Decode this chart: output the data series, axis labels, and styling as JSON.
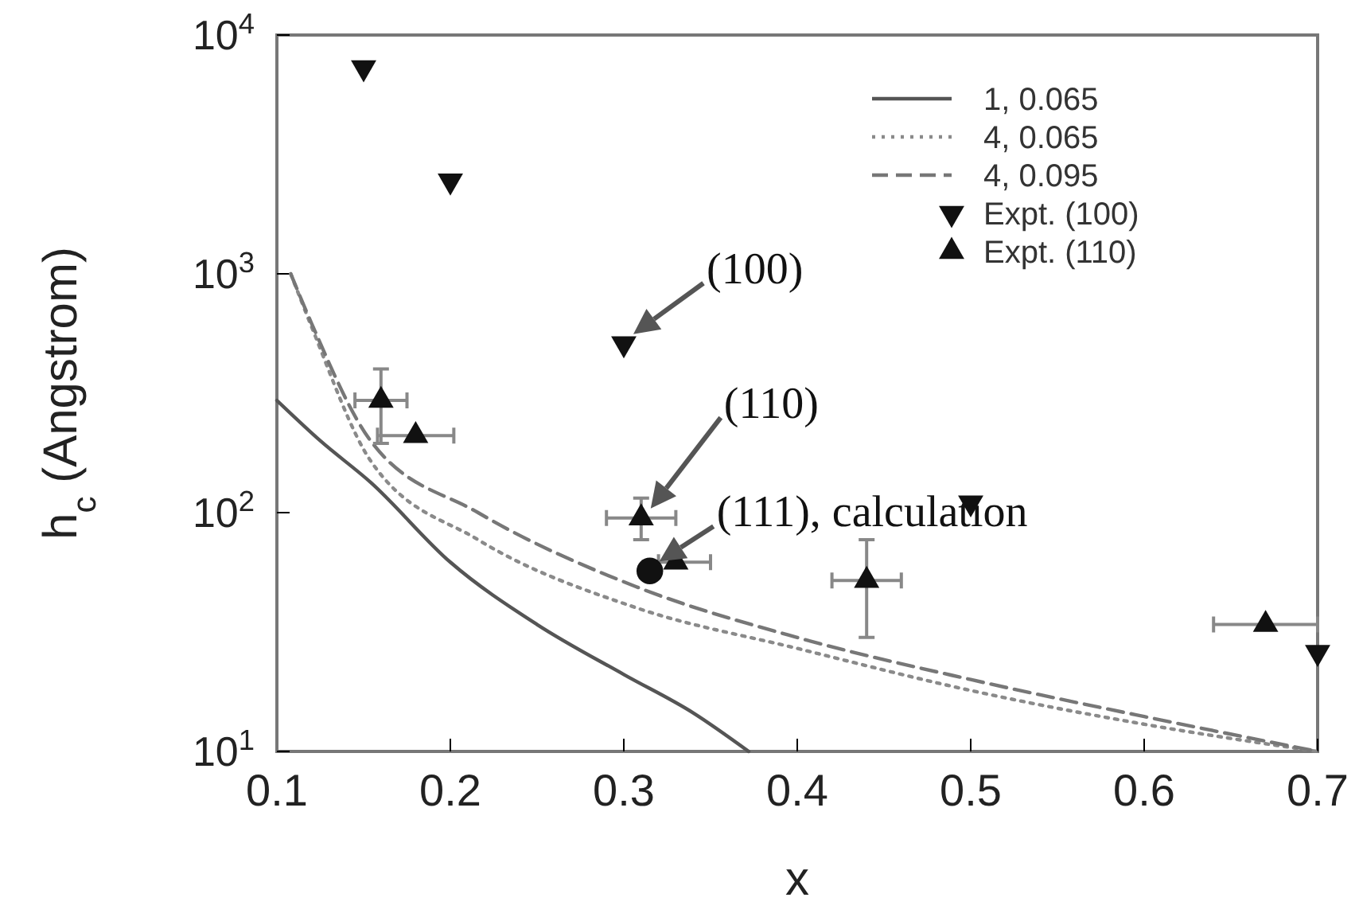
{
  "chart_data": {
    "type": "line",
    "xlabel": "x",
    "ylabel": "h$_{c}$ (Angstrom)",
    "log": "y",
    "xlim": [
      0.1,
      0.7
    ],
    "xticks": [
      0.1,
      0.2,
      0.3,
      0.4,
      0.5,
      0.6,
      0.7
    ],
    "ylim": [
      10,
      10000
    ],
    "yticks": [
      {
        "value": 10,
        "label": "10$^{1}$"
      },
      {
        "value": 100,
        "label": "10$^{2}$"
      },
      {
        "value": 1000,
        "label": "10$^{3}$"
      },
      {
        "value": 10000,
        "label": "10$^{4}$"
      }
    ],
    "grid": false,
    "legend": "top right",
    "series": [
      {
        "name": "1, 0.065",
        "color": "#555555",
        "line_style": "solid",
        "marker": "none",
        "x": [
          0.1,
          0.125,
          0.154,
          0.2,
          0.25,
          0.3,
          0.34,
          0.372
        ],
        "values": [
          295,
          200,
          134,
          62,
          34,
          21,
          14.5,
          10
        ]
      },
      {
        "name": "4, 0.065",
        "color": "#8a8a8a",
        "line_style": "dotted",
        "marker": "none",
        "x": [
          0.108,
          0.12,
          0.154,
          0.216,
          0.307,
          0.4,
          0.5,
          0.6,
          0.7
        ],
        "values": [
          1000,
          600,
          165,
          77,
          40,
          27,
          18,
          13,
          10
        ]
      },
      {
        "name": "4, 0.095",
        "color": "#777777",
        "line_style": "dashed",
        "marker": "none",
        "x": [
          0.108,
          0.12,
          0.154,
          0.216,
          0.307,
          0.4,
          0.5,
          0.6,
          0.7
        ],
        "values": [
          1000,
          620,
          200,
          100,
          49,
          30,
          20,
          14,
          10
        ]
      },
      {
        "name": "Expt. (100)",
        "type": "scatter",
        "color": "#111111",
        "marker": "triangle-down",
        "x": [
          0.15,
          0.2,
          0.3,
          0.5,
          0.7
        ],
        "values": [
          7300,
          2450,
          510,
          110,
          26
        ]
      },
      {
        "name": "Expt. (110)",
        "type": "scatter",
        "color": "#111111",
        "marker": "triangle",
        "x": [
          0.16,
          0.18,
          0.31,
          0.33,
          0.44,
          0.67
        ],
        "values": [
          295,
          210,
          95,
          62,
          52,
          34
        ],
        "errors": [
          [
            195,
            400
          ],
          null,
          [
            77,
            115
          ],
          null,
          [
            30,
            77
          ],
          null
        ],
        "xerrors": [
          [
            0.145,
            0.175
          ],
          [
            0.158,
            0.202
          ],
          [
            0.29,
            0.33
          ],
          [
            0.32,
            0.35
          ],
          [
            0.42,
            0.46
          ],
          [
            0.64,
            0.7
          ]
        ]
      },
      {
        "type": "scatter",
        "color": "#111111",
        "marker": "circle",
        "x": [
          0.315
        ],
        "values": [
          57
        ]
      }
    ],
    "annotations": [
      {
        "text": "(100)",
        "x": 0.3,
        "y": 510
      },
      {
        "text": "(110)",
        "x": 0.31,
        "y": 95
      },
      {
        "text": "(111), calculation",
        "x": 0.315,
        "y": 57
      }
    ]
  }
}
